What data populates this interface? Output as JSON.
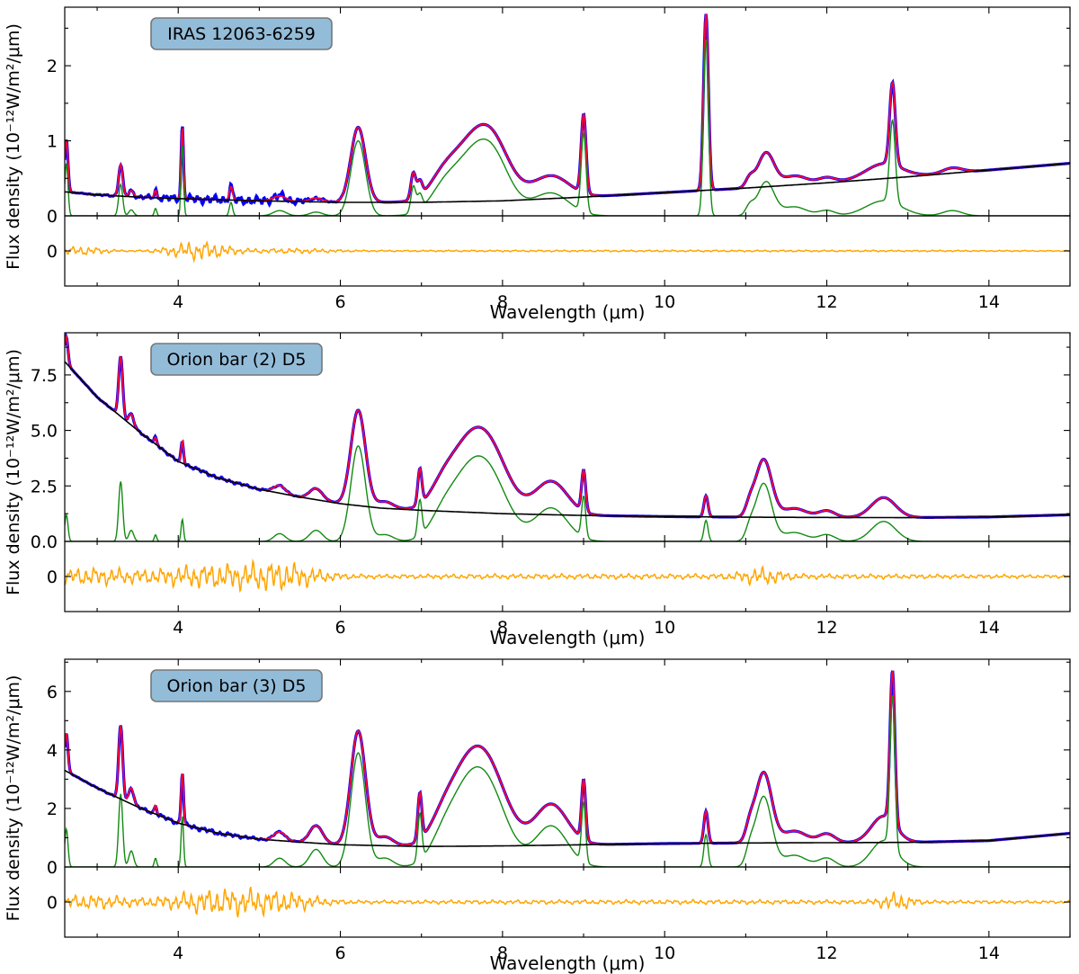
{
  "colors": {
    "observed": "#0000ff",
    "model": "#ff0033",
    "features": "#138a13",
    "continuum": "#000000",
    "residual": "#ffa500",
    "label_box_fill": "#93bcd9",
    "label_box_edge": "#777777"
  },
  "chart_data": [
    {
      "type": "line",
      "title": "IRAS 12063-6259",
      "xlabel": "Wavelength (μm)",
      "ylabel": "Flux density (10⁻¹²W/m²/μm)",
      "xlim": [
        2.6,
        15.0
      ],
      "ylim": [
        0,
        2.78
      ],
      "xticks": [
        4,
        6,
        8,
        10,
        12,
        14
      ],
      "yticks": [
        0,
        1,
        2
      ],
      "ytick_labels": [
        "0",
        "1",
        "2"
      ],
      "residual_ytick": "0",
      "grid": false,
      "continuum": [
        [
          2.6,
          0.32
        ],
        [
          3.0,
          0.28
        ],
        [
          3.5,
          0.25
        ],
        [
          4.0,
          0.23
        ],
        [
          5.0,
          0.2
        ],
        [
          6.0,
          0.18
        ],
        [
          7.0,
          0.18
        ],
        [
          8.0,
          0.2
        ],
        [
          9.0,
          0.25
        ],
        [
          10.0,
          0.31
        ],
        [
          11.0,
          0.37
        ],
        [
          12.0,
          0.44
        ],
        [
          13.0,
          0.52
        ],
        [
          14.0,
          0.61
        ],
        [
          15.0,
          0.7
        ]
      ],
      "features": [
        {
          "center": 2.62,
          "height": 0.7,
          "width": 0.02
        },
        {
          "center": 3.29,
          "height": 0.42,
          "width": 0.025
        },
        {
          "center": 3.42,
          "height": 0.08,
          "width": 0.03
        },
        {
          "center": 3.72,
          "height": 0.1,
          "width": 0.015
        },
        {
          "center": 4.05,
          "height": 0.95,
          "width": 0.015
        },
        {
          "center": 4.65,
          "height": 0.18,
          "width": 0.02
        },
        {
          "center": 5.25,
          "height": 0.07,
          "width": 0.08
        },
        {
          "center": 5.7,
          "height": 0.05,
          "width": 0.08
        },
        {
          "center": 6.22,
          "height": 1.0,
          "width": 0.09
        },
        {
          "center": 6.9,
          "height": 0.35,
          "width": 0.03
        },
        {
          "center": 6.98,
          "height": 0.2,
          "width": 0.03
        },
        {
          "center": 7.25,
          "height": 0.15,
          "width": 0.15
        },
        {
          "center": 7.65,
          "height": 0.8,
          "width": 0.3
        },
        {
          "center": 7.9,
          "height": 0.35,
          "width": 0.2
        },
        {
          "center": 8.6,
          "height": 0.3,
          "width": 0.22
        },
        {
          "center": 9.0,
          "height": 1.05,
          "width": 0.03
        },
        {
          "center": 10.51,
          "height": 2.35,
          "width": 0.03
        },
        {
          "center": 11.05,
          "height": 0.12,
          "width": 0.05
        },
        {
          "center": 11.25,
          "height": 0.45,
          "width": 0.1
        },
        {
          "center": 11.6,
          "height": 0.12,
          "width": 0.15
        },
        {
          "center": 12.0,
          "height": 0.07,
          "width": 0.1
        },
        {
          "center": 12.7,
          "height": 0.2,
          "width": 0.22
        },
        {
          "center": 12.81,
          "height": 1.1,
          "width": 0.035
        },
        {
          "center": 13.55,
          "height": 0.07,
          "width": 0.12
        }
      ],
      "noise": [
        {
          "x": 4.35,
          "amp": 0.05,
          "sigma": 0.7
        },
        {
          "x": 5.3,
          "amp": 0.03,
          "sigma": 0.3
        }
      ],
      "residual_noise": [
        {
          "x": 2.8,
          "amp": 0.06,
          "sigma": 0.25
        },
        {
          "x": 4.25,
          "amp": 0.13,
          "sigma": 0.3
        },
        {
          "x": 5.4,
          "amp": 0.03,
          "sigma": 0.4
        },
        {
          "x": 10.0,
          "amp": 0.012,
          "sigma": 5.0
        }
      ],
      "residual_scale": 0.4
    },
    {
      "type": "line",
      "title": "Orion bar (2) D5",
      "xlabel": "Wavelength (μm)",
      "ylabel": "Flux density (10⁻¹²W/m²/μm)",
      "xlim": [
        2.6,
        15.0
      ],
      "ylim": [
        0,
        9.4
      ],
      "xticks": [
        4,
        6,
        8,
        10,
        12,
        14
      ],
      "yticks": [
        0,
        2.5,
        5,
        7.5
      ],
      "ytick_labels": [
        "0.0",
        "2.5",
        "5.0",
        "7.5"
      ],
      "residual_ytick": "0",
      "grid": false,
      "continuum": [
        [
          2.6,
          8.1
        ],
        [
          3.0,
          6.5
        ],
        [
          3.5,
          5.0
        ],
        [
          4.0,
          3.6
        ],
        [
          4.5,
          2.85
        ],
        [
          5.0,
          2.35
        ],
        [
          5.5,
          2.0
        ],
        [
          6.0,
          1.7
        ],
        [
          6.5,
          1.5
        ],
        [
          7.0,
          1.4
        ],
        [
          8.0,
          1.25
        ],
        [
          9.0,
          1.17
        ],
        [
          10.0,
          1.12
        ],
        [
          11.0,
          1.09
        ],
        [
          12.0,
          1.08
        ],
        [
          13.0,
          1.07
        ],
        [
          14.0,
          1.1
        ],
        [
          15.0,
          1.2
        ]
      ],
      "features": [
        {
          "center": 2.62,
          "height": 1.2,
          "width": 0.02
        },
        {
          "center": 3.29,
          "height": 2.7,
          "width": 0.025
        },
        {
          "center": 3.42,
          "height": 0.5,
          "width": 0.03
        },
        {
          "center": 3.72,
          "height": 0.3,
          "width": 0.015
        },
        {
          "center": 4.05,
          "height": 1.0,
          "width": 0.015
        },
        {
          "center": 5.25,
          "height": 0.35,
          "width": 0.07
        },
        {
          "center": 5.7,
          "height": 0.5,
          "width": 0.08
        },
        {
          "center": 6.22,
          "height": 4.3,
          "width": 0.09
        },
        {
          "center": 6.55,
          "height": 0.3,
          "width": 0.1
        },
        {
          "center": 6.98,
          "height": 1.6,
          "width": 0.025
        },
        {
          "center": 7.25,
          "height": 0.6,
          "width": 0.15
        },
        {
          "center": 7.6,
          "height": 3.0,
          "width": 0.26
        },
        {
          "center": 7.9,
          "height": 1.6,
          "width": 0.22
        },
        {
          "center": 8.6,
          "height": 1.5,
          "width": 0.2
        },
        {
          "center": 9.0,
          "height": 1.85,
          "width": 0.025
        },
        {
          "center": 10.51,
          "height": 0.95,
          "width": 0.025
        },
        {
          "center": 11.05,
          "height": 0.45,
          "width": 0.05
        },
        {
          "center": 11.22,
          "height": 2.6,
          "width": 0.1
        },
        {
          "center": 11.6,
          "height": 0.4,
          "width": 0.15
        },
        {
          "center": 12.0,
          "height": 0.3,
          "width": 0.1
        },
        {
          "center": 12.7,
          "height": 0.9,
          "width": 0.15
        }
      ],
      "noise": [
        {
          "x": 4.3,
          "amp": 0.07,
          "sigma": 0.7
        }
      ],
      "residual_noise": [
        {
          "x": 2.9,
          "amp": 0.35,
          "sigma": 0.4
        },
        {
          "x": 4.4,
          "amp": 0.5,
          "sigma": 0.6
        },
        {
          "x": 5.3,
          "amp": 0.45,
          "sigma": 0.35
        },
        {
          "x": 11.2,
          "amp": 0.3,
          "sigma": 0.2
        },
        {
          "x": 10.0,
          "amp": 0.12,
          "sigma": 5.0
        }
      ],
      "residual_scale": 1.3
    },
    {
      "type": "line",
      "title": "Orion bar (3) D5",
      "xlabel": "Wavelength (μm)",
      "ylabel": "Flux density (10⁻¹²W/m²/μm)",
      "xlim": [
        2.6,
        15.0
      ],
      "ylim": [
        0,
        7.1
      ],
      "xticks": [
        4,
        6,
        8,
        10,
        12,
        14
      ],
      "yticks": [
        0,
        2,
        4,
        6
      ],
      "ytick_labels": [
        "0",
        "2",
        "4",
        "6"
      ],
      "residual_ytick": "0",
      "grid": false,
      "continuum": [
        [
          2.6,
          3.3
        ],
        [
          3.0,
          2.7
        ],
        [
          3.5,
          2.05
        ],
        [
          4.0,
          1.5
        ],
        [
          4.5,
          1.15
        ],
        [
          5.0,
          0.95
        ],
        [
          5.5,
          0.85
        ],
        [
          6.0,
          0.76
        ],
        [
          7.0,
          0.7
        ],
        [
          8.0,
          0.72
        ],
        [
          9.0,
          0.76
        ],
        [
          10.0,
          0.8
        ],
        [
          11.0,
          0.82
        ],
        [
          12.0,
          0.83
        ],
        [
          13.0,
          0.84
        ],
        [
          14.0,
          0.9
        ],
        [
          15.0,
          1.15
        ]
      ],
      "features": [
        {
          "center": 2.62,
          "height": 1.3,
          "width": 0.02
        },
        {
          "center": 3.29,
          "height": 2.5,
          "width": 0.025
        },
        {
          "center": 3.42,
          "height": 0.55,
          "width": 0.03
        },
        {
          "center": 3.72,
          "height": 0.3,
          "width": 0.015
        },
        {
          "center": 4.05,
          "height": 1.75,
          "width": 0.015
        },
        {
          "center": 5.25,
          "height": 0.3,
          "width": 0.07
        },
        {
          "center": 5.7,
          "height": 0.6,
          "width": 0.08
        },
        {
          "center": 6.22,
          "height": 3.9,
          "width": 0.09
        },
        {
          "center": 6.55,
          "height": 0.3,
          "width": 0.1
        },
        {
          "center": 6.98,
          "height": 1.6,
          "width": 0.025
        },
        {
          "center": 7.25,
          "height": 0.45,
          "width": 0.15
        },
        {
          "center": 7.6,
          "height": 2.75,
          "width": 0.26
        },
        {
          "center": 7.9,
          "height": 1.3,
          "width": 0.22
        },
        {
          "center": 8.6,
          "height": 1.4,
          "width": 0.2
        },
        {
          "center": 9.0,
          "height": 2.05,
          "width": 0.025
        },
        {
          "center": 10.51,
          "height": 1.1,
          "width": 0.025
        },
        {
          "center": 11.05,
          "height": 0.45,
          "width": 0.05
        },
        {
          "center": 11.22,
          "height": 2.4,
          "width": 0.1
        },
        {
          "center": 11.6,
          "height": 0.4,
          "width": 0.15
        },
        {
          "center": 12.0,
          "height": 0.3,
          "width": 0.1
        },
        {
          "center": 12.7,
          "height": 0.9,
          "width": 0.15
        },
        {
          "center": 12.81,
          "height": 5.2,
          "width": 0.03
        }
      ],
      "noise": [
        {
          "x": 4.2,
          "amp": 0.07,
          "sigma": 0.7
        }
      ],
      "residual_noise": [
        {
          "x": 2.9,
          "amp": 0.3,
          "sigma": 0.4
        },
        {
          "x": 4.5,
          "amp": 0.55,
          "sigma": 0.5
        },
        {
          "x": 5.3,
          "amp": 0.3,
          "sigma": 0.35
        },
        {
          "x": 12.85,
          "amp": 0.35,
          "sigma": 0.15
        },
        {
          "x": 10.0,
          "amp": 0.1,
          "sigma": 5.0
        }
      ],
      "residual_scale": 1.3
    }
  ]
}
